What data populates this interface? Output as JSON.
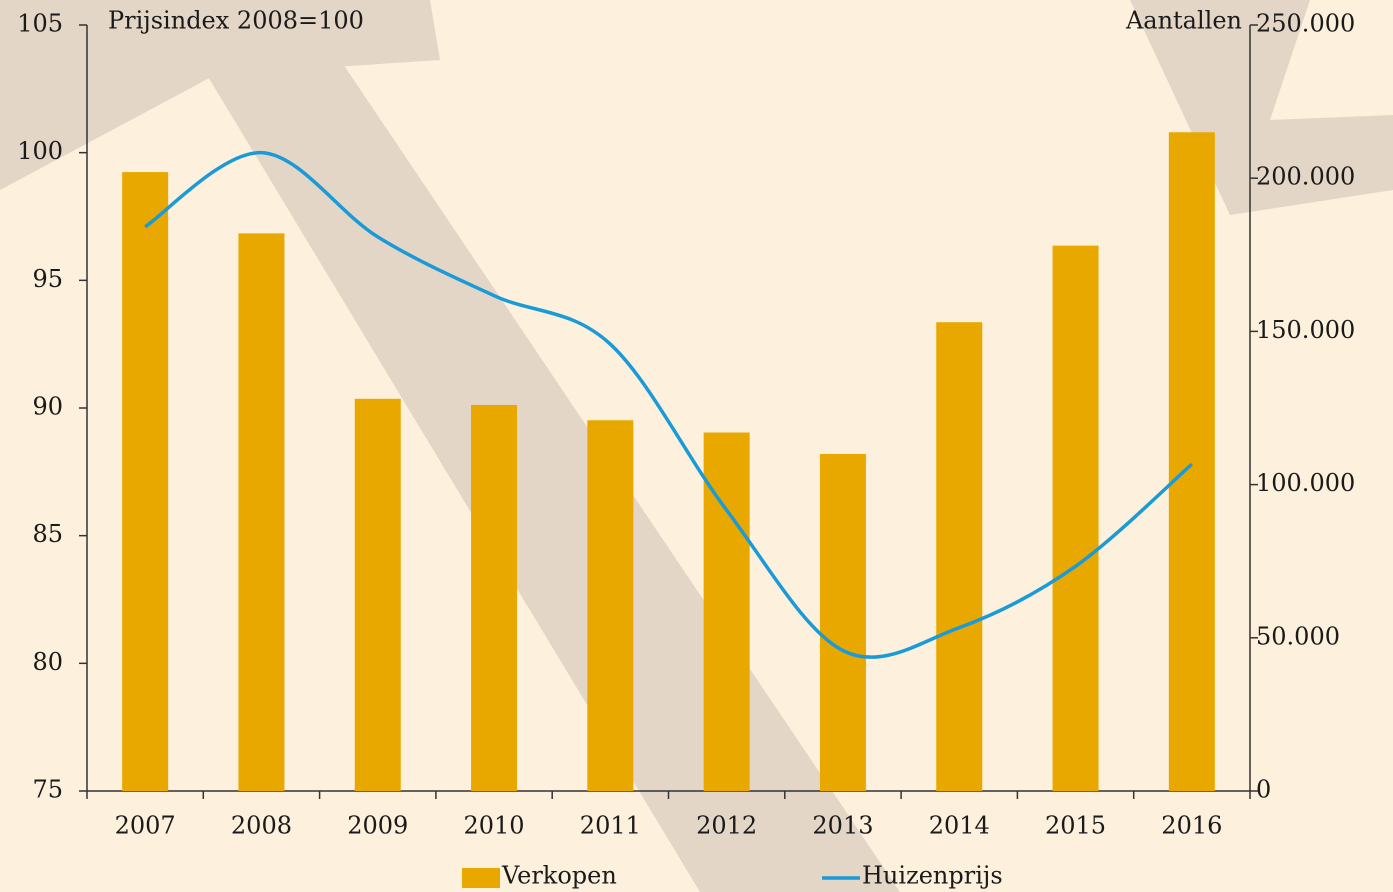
{
  "chart_data": {
    "type": "bar-line",
    "y_label": "Prijsindex 2008=100",
    "y2_label": "Aantallen",
    "categories": [
      "2007",
      "2008",
      "2009",
      "2010",
      "2011",
      "2012",
      "2013",
      "2014",
      "2015",
      "2016"
    ],
    "series": [
      {
        "name": "Verkopen",
        "type": "bar",
        "axis": "y2",
        "color": "#e8a800",
        "values": [
          202000,
          182000,
          128000,
          126000,
          121000,
          117000,
          110000,
          153000,
          178000,
          215000
        ]
      },
      {
        "name": "Huizenprijs",
        "type": "line",
        "axis": "y",
        "color": "#1a9ad6",
        "values": [
          97.1,
          100,
          96.7,
          94.4,
          92.5,
          86.0,
          80.5,
          81.4,
          83.8,
          87.8
        ]
      }
    ],
    "ylim": [
      75,
      105
    ],
    "yticks": [
      75,
      80,
      85,
      90,
      95,
      100,
      105
    ],
    "y2lim": [
      0,
      250000
    ],
    "y2ticks": [
      0,
      {
        "value": 50000,
        "label": "50.000"
      },
      {
        "value": 100000,
        "label": "100.000"
      },
      {
        "value": 150000,
        "label": "150.000"
      },
      {
        "value": 200000,
        "label": "200.000"
      },
      {
        "value": 250000,
        "label": "250.000"
      }
    ]
  }
}
